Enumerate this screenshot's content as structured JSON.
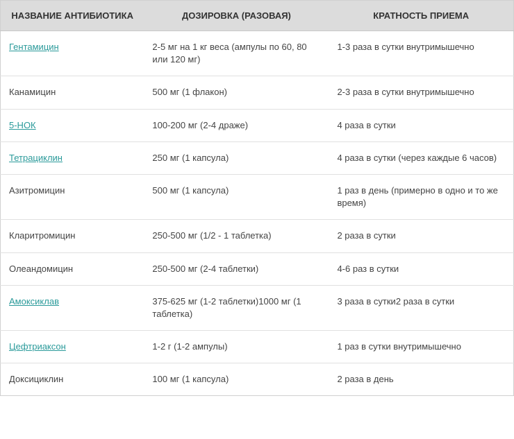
{
  "table": {
    "columns": [
      "НАЗВАНИЕ АНТИБИОТИКА",
      "ДОЗИРОВКА (РАЗОВАЯ)",
      "КРАТНОСТЬ ПРИЕМА"
    ],
    "header_bg": "#dcdcdc",
    "border_color": "#d0d0d0",
    "row_border_color": "#e0e0e0",
    "link_color": "#2a9a9a",
    "text_color": "#444",
    "rows": [
      {
        "name": "Гентамицин",
        "is_link": true,
        "dosage": "2-5 мг на 1 кг веса (ампулы по 60, 80 или 120 мг)",
        "frequency": "1-3 раза в сутки внутримышечно"
      },
      {
        "name": "Канамицин",
        "is_link": false,
        "dosage": "500 мг (1 флакон)",
        "frequency": "2-3 раза в сутки внутримышечно"
      },
      {
        "name": "5-НОК",
        "is_link": true,
        "dosage": "100-200 мг (2-4 драже)",
        "frequency": "4 раза в сутки"
      },
      {
        "name": "Тетрациклин",
        "is_link": true,
        "dosage": "250 мг (1 капсула)",
        "frequency": "4 раза в сутки (через каждые 6 часов)"
      },
      {
        "name": "Азитромицин",
        "is_link": false,
        "dosage": "500 мг (1 капсула)",
        "frequency": "1 раз в день (примерно в одно и то же время)"
      },
      {
        "name": "Кларитромицин",
        "is_link": false,
        "dosage": "250-500 мг (1/2 - 1 таблетка)",
        "frequency": "2 раза в сутки"
      },
      {
        "name": "Олеандомицин",
        "is_link": false,
        "dosage": "250-500 мг (2-4 таблетки)",
        "frequency": "4-6 раз в сутки"
      },
      {
        "name": "Амоксиклав",
        "is_link": true,
        "dosage": "375-625 мг (1-2 таблетки)1000 мг (1 таблетка)",
        "frequency": "3 раза в сутки2 раза в сутки"
      },
      {
        "name": "Цефтриаксон",
        "is_link": true,
        "dosage": "1-2 г (1-2 ампулы)",
        "frequency": "1 раз в сутки внутримышечно"
      },
      {
        "name": "Доксициклин",
        "is_link": false,
        "dosage": "100 мг (1 капсула)",
        "frequency": "2 раза в день"
      }
    ]
  }
}
